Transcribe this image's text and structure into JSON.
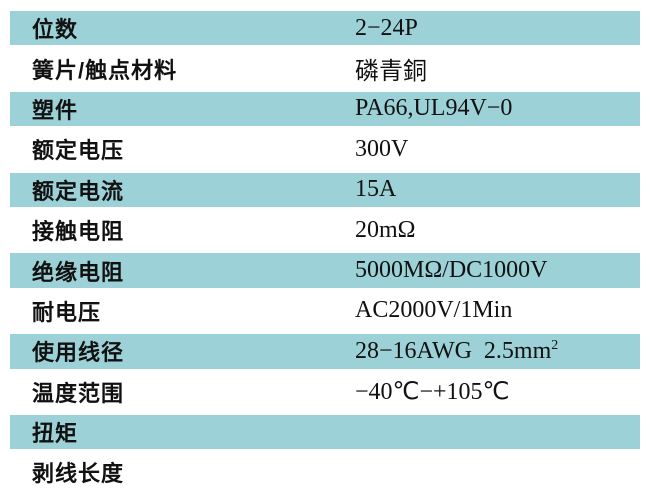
{
  "colors": {
    "row_highlight": "#9cd1d7",
    "background": "#ffffff",
    "text": "#111111"
  },
  "table": {
    "rows": [
      {
        "label": "位数",
        "value": "2−24P",
        "highlight": true
      },
      {
        "label": "簧片/触点材料",
        "value": "磷青銅",
        "highlight": false
      },
      {
        "label": "塑件",
        "value": "PA66,UL94V−0",
        "highlight": true
      },
      {
        "label": "额定电压",
        "value": "300V",
        "highlight": false
      },
      {
        "label": "额定电流",
        "value": "15A",
        "highlight": true
      },
      {
        "label": "接触电阻",
        "value": "20mΩ",
        "highlight": false
      },
      {
        "label": "绝缘电阻",
        "value": "5000MΩ/DC1000V",
        "highlight": true
      },
      {
        "label": "耐电压",
        "value": "AC2000V/1Min",
        "highlight": false
      },
      {
        "label": "使用线径",
        "value": "28−16AWG  2.5mm",
        "value_sup": "2",
        "highlight": true
      },
      {
        "label": "温度范围",
        "value": "−40℃−+105℃",
        "highlight": false
      },
      {
        "label": "扭矩",
        "value": "",
        "highlight": true
      },
      {
        "label": "剥线长度",
        "value": "",
        "highlight": false
      }
    ]
  }
}
